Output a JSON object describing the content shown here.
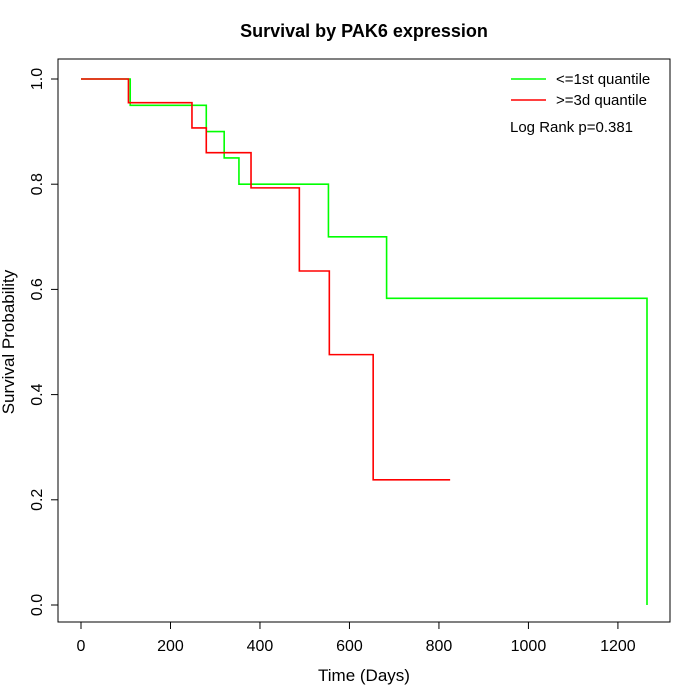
{
  "chart_data": {
    "type": "line",
    "title": "Survival by PAK6 expression",
    "xlabel": "Time (Days)",
    "ylabel": "Survival Probability",
    "xlim": [
      0,
      1300
    ],
    "ylim": [
      0,
      1.0
    ],
    "xticks": [
      "0",
      "200",
      "400",
      "600",
      "800",
      "1000",
      "1200"
    ],
    "yticks": [
      "0.0",
      "0.2",
      "0.4",
      "0.6",
      "0.8",
      "1.0"
    ],
    "legend_position": "top-right",
    "annotation": "Log Rank p=0.381",
    "series": [
      {
        "name": "<=1st quantile",
        "color": "#00ff00",
        "step": true,
        "x": [
          0,
          110,
          280,
          320,
          353,
          553,
          683,
          1265,
          1265
        ],
        "y": [
          1.0,
          0.95,
          0.9,
          0.85,
          0.8,
          0.7,
          0.583,
          0.0,
          0.0
        ]
      },
      {
        "name": ">=3d quantile",
        "color": "#ff0000",
        "step": true,
        "x": [
          0,
          106,
          248,
          280,
          380,
          488,
          555,
          653,
          825
        ],
        "y": [
          1.0,
          0.955,
          0.907,
          0.86,
          0.793,
          0.635,
          0.476,
          0.238,
          0.238
        ]
      }
    ]
  }
}
